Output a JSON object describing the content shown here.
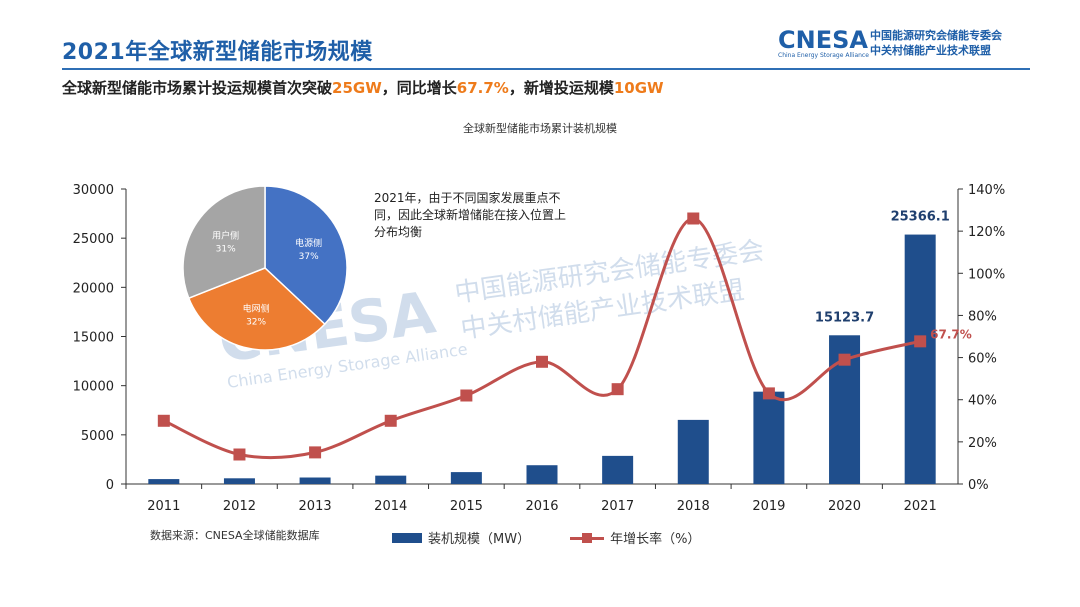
{
  "page": {
    "title": "2021年全球新型储能市场规模",
    "logo": {
      "main": "CNESA",
      "sub": "China Energy Storage Alliance",
      "cn_line1": "中国能源研究会储能专委会",
      "cn_line2": "中关村储能产业技术联盟"
    },
    "subtitle": {
      "p1": "全球新型储能市场累计投运规模首次突破",
      "v1": "25GW",
      "p2": "，同比增长",
      "v2": "67.7%",
      "p3": "，新增投运规模",
      "v3": "10GW"
    },
    "note": "2021年，由于不同国家发展重点不同，因此全球新增储能在接入位置上分布均衡",
    "source": "数据来源：CNESA全球储能数据库",
    "watermark": {
      "brand": "CNESA",
      "en": "China Energy Storage Alliance",
      "cn1": "中国能源研究会储能专委会",
      "cn2": "中关村储能产业技术联盟"
    }
  },
  "chart_data": [
    {
      "type": "bar",
      "title": "全球新型储能市场累计装机规模",
      "categories": [
        "2011",
        "2012",
        "2013",
        "2014",
        "2015",
        "2016",
        "2017",
        "2018",
        "2019",
        "2020",
        "2021"
      ],
      "series": [
        {
          "name": "装机规模（MW）",
          "axis": "left",
          "color": "#1f4e8c",
          "values": [
            500,
            580,
            660,
            850,
            1210,
            1910,
            2860,
            6520,
            9390,
            15123.7,
            25366.1
          ]
        },
        {
          "name": "年增长率（%）",
          "axis": "right",
          "type": "line",
          "color": "#c0504d",
          "values": [
            30,
            14,
            15,
            30,
            42,
            58,
            45,
            126,
            43,
            59,
            67.7
          ]
        }
      ],
      "data_labels": [
        {
          "category": "2020",
          "text": "15123.7"
        },
        {
          "category": "2021",
          "text": "25366.1"
        },
        {
          "category": "2021",
          "text": "67.7%"
        }
      ],
      "y_left": {
        "min": 0,
        "max": 30000,
        "ticks": [
          "0",
          "5000",
          "10000",
          "15000",
          "20000",
          "25000",
          "30000"
        ]
      },
      "y_right": {
        "min": 0,
        "max": 140,
        "ticks": [
          "0%",
          "20%",
          "40%",
          "60%",
          "80%",
          "100%",
          "120%",
          "140%"
        ]
      },
      "legend": [
        "装机规模（MW）",
        "年增长率（%）"
      ],
      "legend_position": "bottom"
    },
    {
      "type": "pie",
      "title": "",
      "slices": [
        {
          "label": "电源侧",
          "value": 37,
          "text": "37%",
          "color": "#4472c4"
        },
        {
          "label": "电网侧",
          "value": 32,
          "text": "32%",
          "color": "#ed7d31"
        },
        {
          "label": "用户侧",
          "value": 31,
          "text": "31%",
          "color": "#a5a5a5"
        }
      ]
    }
  ]
}
